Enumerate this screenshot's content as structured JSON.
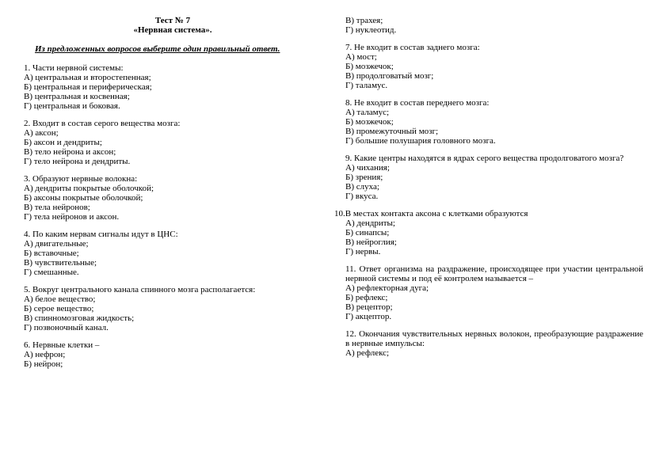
{
  "header": {
    "line1": "Тест № 7",
    "line2": "«Нервная система»."
  },
  "instruction": "Из предложенных вопросов выберите один правильный ответ.",
  "leftColumn": {
    "q1": {
      "text": "1.   Части нервной системы:",
      "a": "А) центральная и второстепенная;",
      "b": "Б) центральная и периферическая;",
      "c": "В) центральная и косвенная;",
      "d": "Г) центральная и боковая."
    },
    "q2": {
      "text": "2.   Входит в состав серого вещества мозга:",
      "a": "А) аксон;",
      "b": "Б) аксон и дендриты;",
      "c": "В) тело нейрона и аксон;",
      "d": "Г) тело нейрона и дендриты."
    },
    "q3": {
      "text": "3.   Образуют нервные волокна:",
      "a": "А) дендриты покрытые оболочкой;",
      "b": "Б) аксоны покрытые оболочкой;",
      "c": "В) тела нейронов;",
      "d": "Г) тела нейронов и аксон."
    },
    "q4": {
      "text": "4.   По каким нервам сигналы идут в ЦНС:",
      "a": "А) двигательные;",
      "b": "Б) вставочные;",
      "c": "В) чувствительные;",
      "d": "Г) смешанные."
    },
    "q5": {
      "text": "5.   Вокруг центрального канала спинного мозга располагается:",
      "a": "А) белое вещество;",
      "b": "Б) серое вещество;",
      "c": "В) спинномозговая жидкость;",
      "d": "Г) позвоночный канал."
    },
    "q6": {
      "text": "6.   Нервные клетки –",
      "a": "А) нефрон;",
      "b": "Б) нейрон;"
    }
  },
  "rightColumn": {
    "q6cont": {
      "c": "В) трахея;",
      "d": "Г) нуклеотид."
    },
    "q7": {
      "text": "7.   Не входит в состав заднего мозга:",
      "a": "А) мост;",
      "b": "Б) мозжечок;",
      "c": "В) продолговатый мозг;",
      "d": "Г)  таламус."
    },
    "q8": {
      "text": "8.   Не входит в состав переднего мозга:",
      "a": "А) таламус;",
      "b": "Б) мозжечок;",
      "c": "В) промежуточный мозг;",
      "d": "Г) большие полушария головного мозга."
    },
    "q9": {
      "text": "9.  Какие   центры   находятся   в   ядрах   серого   вещества продолговатого мозга?",
      "a": "А) чихания;",
      "b": "Б) зрения;",
      "c": "В) слуха;",
      "d": "Г)  вкуса."
    },
    "q10": {
      "text": "10.В местах контакта аксона  с клетками образуются",
      "a": "А) дендриты;",
      "b": "Б) синапсы;",
      "c": "В) нейроглия;",
      "d": "Г) нервы."
    },
    "q11": {
      "text": "11.      Ответ организма на раздражение, происходящее при участии центральной нервной системы и под её контролем называется –",
      "a": "А) рефлекторная дуга;",
      "b": "Б) рефлекс;",
      "c": "В) рецептор;",
      "d": "Г) акцептор."
    },
    "q12": {
      "text": " 12.   Окончания      чувствительных      нервных      волокон, преобразующие раздражение в нервные импульсы:",
      "a": "А) рефлекс;"
    }
  }
}
